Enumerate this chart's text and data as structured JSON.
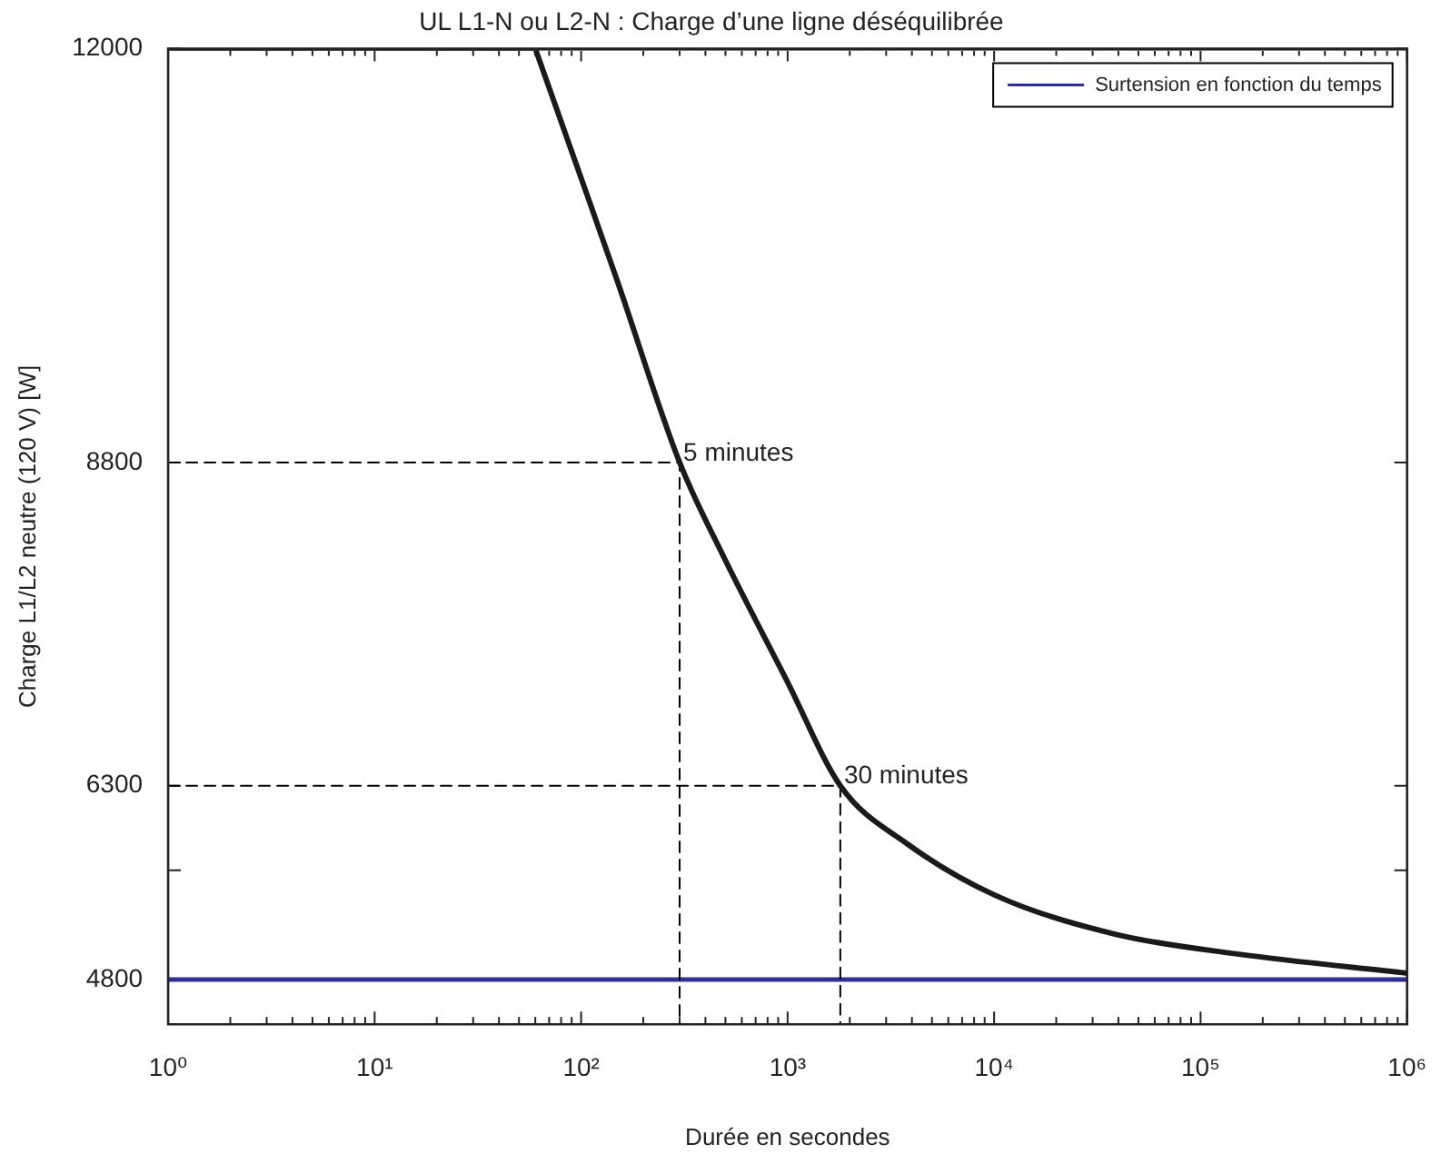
{
  "chart_data": {
    "type": "line",
    "title": "UL L1-N ou L2-N : Charge d’une ligne déséquilibrée",
    "xlabel": "Durée en secondes",
    "ylabel": "Charge L1/L2 neutre (120 V) [W]",
    "log": "x",
    "xlim": [
      1,
      1000000
    ],
    "xticks": [
      {
        "value": 1,
        "label": "10⁰"
      },
      {
        "value": 10,
        "label": "10¹"
      },
      {
        "value": 100,
        "label": "10²"
      },
      {
        "value": 1000,
        "label": "10³"
      },
      {
        "value": 10000,
        "label": "10⁴"
      },
      {
        "value": 100000,
        "label": "10⁵"
      },
      {
        "value": 1000000,
        "label": "10⁶"
      }
    ],
    "ylim": [
      4455,
      12000
    ],
    "yticks": [
      4800,
      {
        "value": 5645,
        "label": null
      },
      6300,
      8800,
      12000
    ],
    "series": [
      {
        "name": "Surtension en fonction du temps",
        "color": "#2e3192",
        "x": [
          1,
          60
        ],
        "values": [
          12000,
          12000
        ]
      },
      {
        "color": "#1a1a1a",
        "x": [
          60,
          100,
          150,
          300,
          480,
          1000,
          1800,
          3800,
          10200,
          39000,
          148000,
          1000000
        ],
        "values": [
          12000,
          11000,
          10200,
          8800,
          8100,
          7100,
          6300,
          5850,
          5450,
          5150,
          5000,
          4850
        ]
      },
      {
        "color": "#000000",
        "line_style": "dashed",
        "x": [
          1,
          300,
          300
        ],
        "values": [
          8800,
          8800,
          4455
        ]
      },
      {
        "color": "#000000",
        "line_style": "dashed",
        "x": [
          1,
          1800,
          1800
        ],
        "values": [
          6300,
          6300,
          4455
        ]
      },
      {
        "color": "#1fae5a",
        "x": [
          60,
          1000000
        ],
        "values": [
          12000,
          12000
        ]
      },
      {
        "color": "#2e3192",
        "x": [
          1,
          1000000
        ],
        "values": [
          4800,
          4800
        ]
      }
    ],
    "annotations": [
      {
        "text": "5 minutes",
        "x": 300,
        "y": 8800
      },
      {
        "text": "30 minutes",
        "x": 1800,
        "y": 6300
      }
    ],
    "grid": false,
    "legend": "top right",
    "marker": "none"
  }
}
